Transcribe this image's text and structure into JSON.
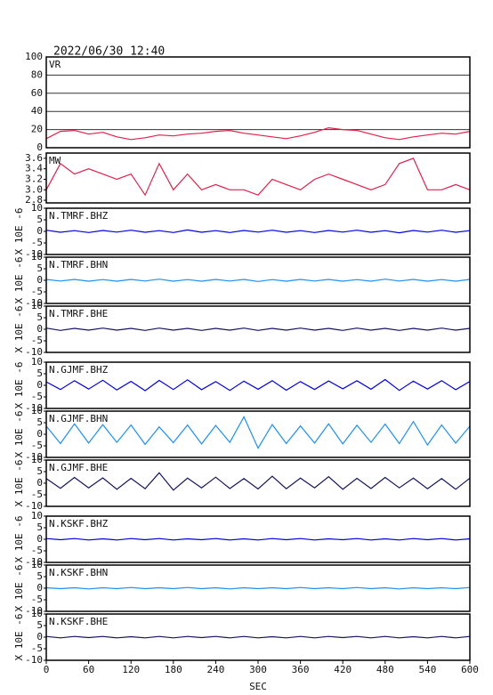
{
  "chart_data": [
    {
      "type": "line",
      "title": "2022/06/30 12:40",
      "ylim": [
        0,
        100
      ],
      "yticks": [
        0,
        20,
        40,
        60,
        80,
        100
      ],
      "grid": true,
      "xlim": [
        0,
        600
      ],
      "x": [
        0,
        20,
        40,
        60,
        80,
        100,
        120,
        140,
        160,
        180,
        200,
        220,
        240,
        260,
        280,
        300,
        320,
        340,
        360,
        380,
        400,
        420,
        440,
        460,
        480,
        500,
        520,
        540,
        560,
        580,
        600
      ],
      "series": [
        {
          "name": "VR",
          "color": "#e0204a",
          "values": [
            10,
            18,
            19,
            15,
            17,
            12,
            9,
            11,
            14,
            13,
            15,
            16,
            18,
            19,
            16,
            14,
            12,
            10,
            13,
            17,
            22,
            20,
            19,
            15,
            11,
            9,
            12,
            14,
            16,
            15,
            18
          ]
        }
      ]
    },
    {
      "type": "line",
      "ylim": [
        2.75,
        3.7
      ],
      "yticks": [
        2.8,
        {
          "value": 3,
          "label": "3.0"
        },
        3.2,
        3.4,
        3.6
      ],
      "xlim": [
        0,
        600
      ],
      "x": [
        0,
        20,
        40,
        60,
        80,
        100,
        120,
        140,
        160,
        180,
        200,
        220,
        240,
        260,
        280,
        300,
        320,
        340,
        360,
        380,
        400,
        420,
        440,
        460,
        480,
        500,
        520,
        540,
        560,
        580,
        600
      ],
      "series": [
        {
          "name": "MW",
          "color": "#e0204a",
          "values": [
            3.0,
            3.5,
            3.3,
            3.4,
            3.3,
            3.2,
            3.3,
            2.9,
            3.5,
            3.0,
            3.3,
            3.0,
            3.1,
            3.0,
            3.0,
            2.9,
            3.2,
            3.1,
            3.0,
            3.2,
            3.3,
            3.2,
            3.1,
            3.0,
            3.1,
            3.5,
            3.6,
            3.0,
            3.0,
            3.1,
            3.0
          ]
        }
      ]
    },
    {
      "type": "line",
      "ylabel": "X 10E -6",
      "ylim": [
        -10,
        10
      ],
      "yticks": [
        -10,
        -5,
        0,
        5,
        10
      ],
      "xlim": [
        0,
        600
      ],
      "x": [
        0,
        20,
        40,
        60,
        80,
        100,
        120,
        140,
        160,
        180,
        200,
        220,
        240,
        260,
        280,
        300,
        320,
        340,
        360,
        380,
        400,
        420,
        440,
        460,
        480,
        500,
        520,
        540,
        560,
        580,
        600
      ],
      "series": [
        {
          "name": "N.TMRF.BHZ",
          "color": "#0000dd",
          "values": [
            0.5,
            -0.4,
            0.3,
            -0.5,
            0.4,
            -0.3,
            0.5,
            -0.4,
            0.3,
            -0.5,
            0.6,
            -0.4,
            0.3,
            -0.5,
            0.4,
            -0.3,
            0.5,
            -0.4,
            0.3,
            -0.5,
            0.4,
            -0.3,
            0.5,
            -0.4,
            0.3,
            -0.6,
            0.4,
            -0.3,
            0.5,
            -0.4,
            0.3
          ]
        }
      ]
    },
    {
      "type": "line",
      "ylabel": "X 10E -6",
      "ylim": [
        -10,
        10
      ],
      "yticks": [
        -10,
        -5,
        0,
        5,
        10
      ],
      "xlim": [
        0,
        600
      ],
      "x": [
        0,
        20,
        40,
        60,
        80,
        100,
        120,
        140,
        160,
        180,
        200,
        220,
        240,
        260,
        280,
        300,
        320,
        340,
        360,
        380,
        400,
        420,
        440,
        460,
        480,
        500,
        520,
        540,
        560,
        580,
        600
      ],
      "series": [
        {
          "name": "N.TMRF.BHN",
          "color": "#1e8ff0",
          "values": [
            0.4,
            -0.3,
            0.4,
            -0.4,
            0.3,
            -0.4,
            0.4,
            -0.3,
            0.5,
            -0.4,
            0.3,
            -0.4,
            0.4,
            -0.3,
            0.4,
            -0.5,
            0.3,
            -0.4,
            0.4,
            -0.3,
            0.4,
            -0.4,
            0.3,
            -0.4,
            0.5,
            -0.3,
            0.4,
            -0.4,
            0.3,
            -0.4,
            0.4
          ]
        }
      ]
    },
    {
      "type": "line",
      "ylabel": "X 10E -6",
      "ylim": [
        -10,
        10
      ],
      "yticks": [
        -10,
        -5,
        0,
        5,
        10
      ],
      "xlim": [
        0,
        600
      ],
      "x": [
        0,
        20,
        40,
        60,
        80,
        100,
        120,
        140,
        160,
        180,
        200,
        220,
        240,
        260,
        280,
        300,
        320,
        340,
        360,
        380,
        400,
        420,
        440,
        460,
        480,
        500,
        520,
        540,
        560,
        580,
        600
      ],
      "series": [
        {
          "name": "N.TMRF.BHE",
          "color": "#14145e",
          "values": [
            0.5,
            -0.5,
            0.4,
            -0.4,
            0.5,
            -0.4,
            0.4,
            -0.5,
            0.5,
            -0.4,
            0.4,
            -0.5,
            0.4,
            -0.4,
            0.5,
            -0.5,
            0.4,
            -0.4,
            0.5,
            -0.4,
            0.4,
            -0.5,
            0.5,
            -0.4,
            0.4,
            -0.5,
            0.4,
            -0.4,
            0.5,
            -0.4,
            0.4
          ]
        }
      ]
    },
    {
      "type": "line",
      "ylabel": "X 10E -6",
      "ylim": [
        -10,
        10
      ],
      "yticks": [
        -10,
        -5,
        0,
        5,
        10
      ],
      "xlim": [
        0,
        600
      ],
      "x": [
        0,
        20,
        40,
        60,
        80,
        100,
        120,
        140,
        160,
        180,
        200,
        220,
        240,
        260,
        280,
        300,
        320,
        340,
        360,
        380,
        400,
        420,
        440,
        460,
        480,
        500,
        520,
        540,
        560,
        580,
        600
      ],
      "series": [
        {
          "name": "N.GJMF.BHZ",
          "color": "#0000dd",
          "values": [
            1.5,
            -1.8,
            2.0,
            -1.6,
            2.2,
            -2.0,
            1.7,
            -2.3,
            2.1,
            -1.8,
            2.4,
            -1.9,
            1.6,
            -2.2,
            1.8,
            -1.7,
            2.0,
            -2.1,
            1.6,
            -1.8,
            1.9,
            -1.5,
            2.0,
            -1.7,
            2.5,
            -2.2,
            1.8,
            -1.6,
            2.0,
            -1.9,
            1.7
          ]
        }
      ]
    },
    {
      "type": "line",
      "ylabel": "X 10E -6",
      "ylim": [
        -10,
        10
      ],
      "yticks": [
        -10,
        -5,
        0,
        5,
        10
      ],
      "xlim": [
        0,
        600
      ],
      "x": [
        0,
        20,
        40,
        60,
        80,
        100,
        120,
        140,
        160,
        180,
        200,
        220,
        240,
        260,
        280,
        300,
        320,
        340,
        360,
        380,
        400,
        420,
        440,
        460,
        480,
        500,
        520,
        540,
        560,
        580,
        600
      ],
      "series": [
        {
          "name": "N.GJMF.BHN",
          "color": "#1e8ff0",
          "values": [
            3.5,
            -4.0,
            4.5,
            -3.8,
            4.2,
            -3.5,
            4.0,
            -4.4,
            3.2,
            -3.6,
            4.0,
            -4.2,
            3.8,
            -3.5,
            7.5,
            -6.0,
            4.2,
            -4.0,
            3.6,
            -3.8,
            4.5,
            -4.2,
            3.9,
            -3.5,
            4.4,
            -4.0,
            5.5,
            -4.6,
            4.0,
            -3.8,
            3.5
          ]
        }
      ]
    },
    {
      "type": "line",
      "ylabel": "X 10E -6",
      "ylim": [
        -10,
        10
      ],
      "yticks": [
        -10,
        -5,
        0,
        5,
        10
      ],
      "xlim": [
        0,
        600
      ],
      "x": [
        0,
        20,
        40,
        60,
        80,
        100,
        120,
        140,
        160,
        180,
        200,
        220,
        240,
        260,
        280,
        300,
        320,
        340,
        360,
        380,
        400,
        420,
        440,
        460,
        480,
        500,
        520,
        540,
        560,
        580,
        600
      ],
      "series": [
        {
          "name": "N.GJMF.BHE",
          "color": "#14145e",
          "values": [
            2.0,
            -2.2,
            2.5,
            -2.0,
            2.3,
            -2.6,
            2.1,
            -2.4,
            4.5,
            -3.0,
            2.2,
            -2.0,
            2.6,
            -2.3,
            2.0,
            -2.5,
            3.0,
            -2.4,
            2.2,
            -2.0,
            2.8,
            -2.6,
            2.1,
            -2.3,
            2.5,
            -2.0,
            2.2,
            -2.4,
            2.0,
            -2.6,
            2.2
          ]
        }
      ]
    },
    {
      "type": "line",
      "ylabel": "X 10E -6",
      "ylim": [
        -10,
        10
      ],
      "yticks": [
        -10,
        -5,
        0,
        5,
        10
      ],
      "xlim": [
        0,
        600
      ],
      "x": [
        0,
        20,
        40,
        60,
        80,
        100,
        120,
        140,
        160,
        180,
        200,
        220,
        240,
        260,
        280,
        300,
        320,
        340,
        360,
        380,
        400,
        420,
        440,
        460,
        480,
        500,
        520,
        540,
        560,
        580,
        600
      ],
      "series": [
        {
          "name": "N.KSKF.BHZ",
          "color": "#0000dd",
          "values": [
            0.3,
            -0.2,
            0.3,
            -0.3,
            0.2,
            -0.3,
            0.3,
            -0.2,
            0.3,
            -0.3,
            0.2,
            -0.2,
            0.3,
            -0.3,
            0.2,
            -0.3,
            0.3,
            -0.2,
            0.3,
            -0.3,
            0.2,
            -0.2,
            0.3,
            -0.3,
            0.2,
            -0.3,
            0.3,
            -0.2,
            0.3,
            -0.3,
            0.2
          ]
        }
      ]
    },
    {
      "type": "line",
      "ylabel": "X 10E -6",
      "ylim": [
        -10,
        10
      ],
      "yticks": [
        -10,
        -5,
        0,
        5,
        10
      ],
      "xlim": [
        0,
        600
      ],
      "x": [
        0,
        20,
        40,
        60,
        80,
        100,
        120,
        140,
        160,
        180,
        200,
        220,
        240,
        260,
        280,
        300,
        320,
        340,
        360,
        380,
        400,
        420,
        440,
        460,
        480,
        500,
        520,
        540,
        560,
        580,
        600
      ],
      "series": [
        {
          "name": "N.KSKF.BHN",
          "color": "#1e8ff0",
          "values": [
            0.2,
            -0.2,
            0.2,
            -0.3,
            0.2,
            -0.2,
            0.3,
            -0.2,
            0.2,
            -0.2,
            0.3,
            -0.2,
            0.2,
            -0.3,
            0.2,
            -0.2,
            0.2,
            -0.2,
            0.3,
            -0.2,
            0.2,
            -0.2,
            0.3,
            -0.2,
            0.2,
            -0.3,
            0.2,
            -0.2,
            0.2,
            -0.2,
            0.3
          ]
        }
      ]
    },
    {
      "type": "line",
      "ylabel": "X 10E -6",
      "xlabel": "SEC",
      "ylim": [
        -10,
        10
      ],
      "yticks": [
        -10,
        -5,
        0,
        5,
        10
      ],
      "xlim": [
        0,
        600
      ],
      "xticks": [
        0,
        60,
        120,
        180,
        240,
        300,
        360,
        420,
        480,
        540,
        600
      ],
      "x": [
        0,
        20,
        40,
        60,
        80,
        100,
        120,
        140,
        160,
        180,
        200,
        220,
        240,
        260,
        280,
        300,
        320,
        340,
        360,
        380,
        400,
        420,
        440,
        460,
        480,
        500,
        520,
        540,
        560,
        580,
        600
      ],
      "series": [
        {
          "name": "N.KSKF.BHE",
          "color": "#14145e",
          "values": [
            0.3,
            -0.3,
            0.3,
            -0.2,
            0.3,
            -0.3,
            0.2,
            -0.3,
            0.3,
            -0.3,
            0.3,
            -0.2,
            0.3,
            -0.3,
            0.3,
            -0.3,
            0.2,
            -0.3,
            0.3,
            -0.3,
            0.3,
            -0.2,
            0.3,
            -0.3,
            0.3,
            -0.3,
            0.2,
            -0.3,
            0.3,
            -0.3,
            0.3
          ]
        }
      ]
    }
  ]
}
